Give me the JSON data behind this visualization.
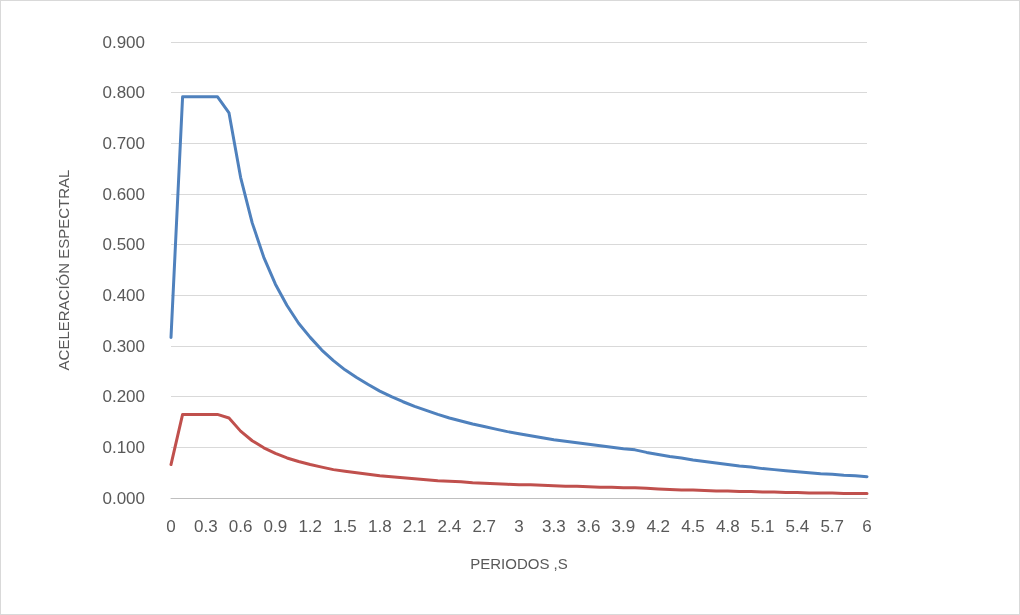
{
  "chart_data": {
    "type": "line",
    "xlabel": "PERIODOS ,S",
    "ylabel": "ACELERACIÓN ESPECTRAL",
    "categories": [
      "0",
      null,
      null,
      "0.3",
      null,
      null,
      "0.6",
      null,
      null,
      "0.9",
      null,
      null,
      "1.2",
      null,
      null,
      "1.5",
      null,
      null,
      "1.8",
      null,
      null,
      "2.1",
      null,
      null,
      "2.4",
      null,
      null,
      "2.7",
      null,
      null,
      "3",
      null,
      null,
      "3.3",
      null,
      null,
      "3.6",
      null,
      null,
      "3.9",
      null,
      null,
      "4.2",
      null,
      null,
      "4.5",
      null,
      null,
      "4.8",
      null,
      null,
      "5.1",
      null,
      null,
      "5.4",
      null,
      null,
      "5.7",
      null,
      null,
      "6"
    ],
    "series": [
      {
        "color": "#4f81bd",
        "values": [
          0.317,
          0.792,
          0.792,
          0.792,
          0.792,
          0.76,
          0.633,
          0.543,
          0.475,
          0.422,
          0.38,
          0.345,
          0.317,
          0.292,
          0.271,
          0.253,
          0.238,
          0.224,
          0.211,
          0.2,
          0.19,
          0.181,
          0.173,
          0.165,
          0.158,
          0.152,
          0.146,
          0.141,
          0.136,
          0.131,
          0.127,
          0.123,
          0.119,
          0.115,
          0.112,
          0.109,
          0.106,
          0.103,
          0.1,
          0.097,
          0.095,
          0.09,
          0.086,
          0.082,
          0.079,
          0.075,
          0.072,
          0.069,
          0.066,
          0.063,
          0.061,
          0.058,
          0.056,
          0.054,
          0.052,
          0.05,
          0.048,
          0.047,
          0.045,
          0.044,
          0.042
        ]
      },
      {
        "color": "#c0504d",
        "values": [
          0.066,
          0.165,
          0.165,
          0.165,
          0.165,
          0.158,
          0.132,
          0.113,
          0.099,
          0.088,
          0.079,
          0.072,
          0.066,
          0.061,
          0.056,
          0.053,
          0.05,
          0.047,
          0.044,
          0.042,
          0.04,
          0.038,
          0.036,
          0.034,
          0.033,
          0.032,
          0.03,
          0.029,
          0.028,
          0.027,
          0.026,
          0.026,
          0.025,
          0.024,
          0.023,
          0.023,
          0.022,
          0.021,
          0.021,
          0.02,
          0.02,
          0.019,
          0.018,
          0.017,
          0.016,
          0.016,
          0.015,
          0.014,
          0.014,
          0.013,
          0.013,
          0.012,
          0.012,
          0.011,
          0.011,
          0.01,
          0.01,
          0.01,
          0.009,
          0.009,
          0.009
        ]
      }
    ],
    "ylim": [
      0,
      0.9
    ],
    "yticks": [
      {
        "value": 0,
        "label": "0.000"
      },
      {
        "value": 0.1,
        "label": "0.100"
      },
      {
        "value": 0.2,
        "label": "0.200"
      },
      {
        "value": 0.3,
        "label": "0.300"
      },
      {
        "value": 0.4,
        "label": "0.400"
      },
      {
        "value": 0.5,
        "label": "0.500"
      },
      {
        "value": 0.6,
        "label": "0.600"
      },
      {
        "value": 0.7,
        "label": "0.700"
      },
      {
        "value": 0.8,
        "label": "0.800"
      },
      {
        "value": 0.9,
        "label": "0.900"
      }
    ],
    "grid": "y",
    "marker": "none",
    "line_style": "solid"
  }
}
